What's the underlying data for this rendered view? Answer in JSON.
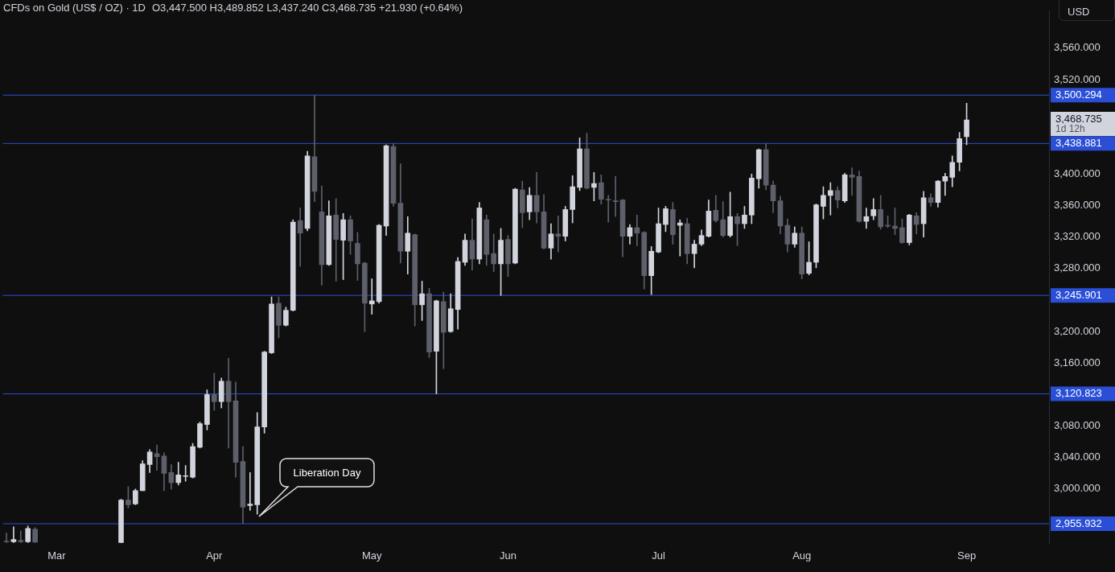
{
  "chart_data": {
    "type": "candlestick",
    "title": "CFDs on Gold (US$ / OZ) · 1D",
    "subtitle": "O3,447.500 H3,489.852 L3,437.240 C3,468.735 +21.930 (+0.64%)",
    "ylabel": "USD",
    "categories": [
      null,
      null,
      null,
      null,
      null,
      null,
      null,
      "Mar",
      null,
      null,
      null,
      null,
      null,
      null,
      null,
      null,
      null,
      null,
      null,
      null,
      null,
      null,
      null,
      null,
      null,
      null,
      null,
      null,
      null,
      "Apr",
      null,
      null,
      null,
      null,
      null,
      null,
      null,
      null,
      null,
      null,
      null,
      null,
      null,
      null,
      null,
      null,
      null,
      null,
      null,
      null,
      null,
      "May",
      null,
      null,
      null,
      null,
      null,
      null,
      null,
      null,
      null,
      null,
      null,
      null,
      null,
      null,
      null,
      null,
      null,
      null,
      "Jun",
      null,
      null,
      null,
      null,
      null,
      null,
      null,
      null,
      null,
      null,
      null,
      null,
      null,
      null,
      null,
      null,
      null,
      null,
      null,
      null,
      "Jul",
      null,
      null,
      null,
      null,
      null,
      null,
      null,
      null,
      null,
      null,
      null,
      null,
      null,
      null,
      null,
      null,
      null,
      null,
      null,
      "Aug",
      null,
      null,
      null,
      null,
      null,
      null,
      null,
      null,
      null,
      null,
      null,
      null,
      null,
      null,
      null,
      null,
      null,
      null,
      null,
      null,
      null,
      null,
      "Sep",
      null,
      null,
      null,
      null,
      null,
      null,
      null,
      null,
      null,
      null,
      null
    ],
    "ohlc": [
      [
        2934,
        2944,
        2932,
        2933
      ],
      [
        2933,
        2952,
        2932,
        2936
      ],
      [
        2935,
        2947,
        2932,
        2933
      ],
      [
        2933,
        2953,
        2932,
        2950
      ],
      [
        2949,
        2951,
        2932,
        2932.5
      ],
      null,
      null,
      null,
      null,
      null,
      null,
      null,
      null,
      null,
      null,
      null,
      [
        2932,
        2987,
        2932,
        2986
      ],
      [
        2986,
        3003,
        2976,
        2980
      ],
      [
        2981,
        3000,
        2980,
        2998
      ],
      [
        2998,
        3036,
        2998,
        3032
      ],
      [
        3031,
        3050,
        3021,
        3047
      ],
      [
        3045,
        3056,
        3024,
        3041
      ],
      [
        3042,
        3046,
        2998,
        3020
      ],
      [
        3021,
        3031,
        3000,
        3008
      ],
      [
        3008,
        3034,
        3005,
        3018
      ],
      [
        3016,
        3030,
        3010,
        3017
      ],
      [
        3015,
        3058,
        3014,
        3054
      ],
      [
        3053,
        3085,
        3052,
        3083
      ],
      [
        3082,
        3126,
        3075,
        3120
      ],
      [
        3120,
        3147,
        3100,
        3111
      ],
      [
        3111,
        3141,
        3103,
        3137
      ],
      [
        3137,
        3166,
        3052,
        3111
      ],
      [
        3112,
        3136,
        3015,
        3034
      ],
      [
        3035,
        3054,
        2955.932,
        2977
      ],
      [
        2979,
        3021,
        2973,
        2981
      ],
      [
        2980,
        3097,
        2968,
        3079
      ],
      [
        3079,
        3175,
        3071,
        3174
      ],
      [
        3173,
        3244,
        3172,
        3235
      ],
      [
        3236,
        3244,
        3192,
        3208
      ],
      [
        3208,
        3231,
        3207,
        3227
      ],
      [
        3227,
        3342,
        3226,
        3339
      ],
      [
        3341,
        3357,
        3283,
        3325
      ],
      [
        3331,
        3429,
        3328,
        3423
      ],
      [
        3422,
        3500.294,
        3365,
        3378
      ],
      [
        3352,
        3385,
        3259,
        3285
      ],
      [
        3285,
        3366,
        3284,
        3347
      ],
      [
        3348,
        3369,
        3264,
        3317
      ],
      [
        3316,
        3350,
        3266,
        3342
      ],
      [
        3342,
        3347,
        3298,
        3315
      ],
      [
        3312,
        3326,
        3265,
        3286
      ],
      [
        3287,
        3288,
        3200,
        3236
      ],
      [
        3235,
        3267,
        3222,
        3239
      ],
      [
        3238,
        3336,
        3236,
        3335
      ],
      [
        3334,
        3437,
        3322,
        3436
      ],
      [
        3435,
        3438.881,
        3359,
        3363
      ],
      [
        3363,
        3413,
        3287,
        3302
      ],
      [
        3302,
        3346,
        3273,
        3325
      ],
      [
        3323,
        3324,
        3207,
        3234
      ],
      [
        3234,
        3264,
        3214,
        3248
      ],
      [
        3248,
        3255,
        3167,
        3174
      ],
      [
        3175,
        3240,
        3120.823,
        3239
      ],
      [
        3238,
        3250,
        3153,
        3199
      ],
      [
        3200,
        3248,
        3199,
        3229
      ],
      [
        3228,
        3294,
        3203,
        3289
      ],
      [
        3288,
        3324,
        3284,
        3316
      ],
      [
        3316,
        3343,
        3278,
        3292
      ],
      [
        3292,
        3364,
        3286,
        3357
      ],
      [
        3342,
        3348,
        3284,
        3298
      ],
      [
        3299,
        3324,
        3276,
        3286
      ],
      [
        3286,
        3331,
        3245.901,
        3316
      ],
      [
        3317,
        3322,
        3270,
        3286
      ],
      [
        3287,
        3382,
        3286,
        3381
      ],
      [
        3380,
        3391,
        3332,
        3351
      ],
      [
        3352,
        3383,
        3342,
        3373
      ],
      [
        3373,
        3402,
        3338,
        3352
      ],
      [
        3352,
        3374,
        3305,
        3306
      ],
      [
        3306,
        3337,
        3292,
        3324
      ],
      [
        3324,
        3347,
        3301,
        3321
      ],
      [
        3321,
        3359,
        3315,
        3355
      ],
      [
        3355,
        3398,
        3338,
        3384
      ],
      [
        3383,
        3446,
        3379,
        3432
      ],
      [
        3432,
        3452,
        3381,
        3382
      ],
      [
        3383,
        3402,
        3366,
        3388
      ],
      [
        3389,
        3399,
        3362,
        3368
      ],
      [
        3368,
        3373,
        3339,
        3367
      ],
      [
        3366,
        3397,
        3346,
        3365
      ],
      [
        3367,
        3368,
        3295,
        3321
      ],
      [
        3321,
        3336,
        3311,
        3332
      ],
      [
        3332,
        3348,
        3309,
        3325
      ],
      [
        3326,
        3327,
        3254,
        3271
      ],
      [
        3271,
        3308,
        3247,
        3302
      ],
      [
        3301,
        3357,
        3300,
        3337
      ],
      [
        3336,
        3359,
        3327,
        3356
      ],
      [
        3355,
        3364,
        3311,
        3323
      ],
      [
        3335,
        3342,
        3296,
        3338
      ],
      [
        3337,
        3344,
        3286,
        3299
      ],
      [
        3299,
        3316,
        3281,
        3311
      ],
      [
        3311,
        3329,
        3309,
        3322
      ],
      [
        3321,
        3367,
        3320,
        3353
      ],
      [
        3354,
        3373,
        3339,
        3341
      ],
      [
        3342,
        3365,
        3320,
        3322
      ],
      [
        3322,
        3377,
        3320,
        3346
      ],
      [
        3346,
        3350,
        3309,
        3337
      ],
      [
        3337,
        3359,
        3331,
        3348
      ],
      [
        3348,
        3400,
        3337,
        3395
      ],
      [
        3394,
        3432,
        3382,
        3431
      ],
      [
        3431,
        3438.881,
        3380,
        3386
      ],
      [
        3386,
        3391,
        3351,
        3366
      ],
      [
        3366,
        3372,
        3324,
        3334
      ],
      [
        3335,
        3343,
        3301,
        3311
      ],
      [
        3311,
        3333,
        3307,
        3325
      ],
      [
        3325,
        3333,
        3267,
        3273
      ],
      [
        3274,
        3314,
        3272,
        3288
      ],
      [
        3288,
        3362,
        3281,
        3361
      ],
      [
        3359,
        3384,
        3343,
        3373
      ],
      [
        3373,
        3389,
        3348,
        3379
      ],
      [
        3379,
        3384,
        3357,
        3367
      ],
      [
        3366,
        3401,
        3364,
        3399
      ],
      [
        3399,
        3408,
        3373,
        3396
      ],
      [
        3397,
        3404,
        3339,
        3340
      ],
      [
        3340,
        3357,
        3331,
        3346
      ],
      [
        3347,
        3369,
        3342,
        3355
      ],
      [
        3355,
        3373,
        3330,
        3333
      ],
      [
        3335,
        3347,
        3332,
        3334
      ],
      [
        3334,
        3357,
        3323,
        3331
      ],
      [
        3332,
        3343,
        3312,
        3313
      ],
      [
        3313,
        3349,
        3310,
        3348
      ],
      [
        3347,
        3351,
        3324,
        3336
      ],
      [
        3337,
        3378,
        3320,
        3370
      ],
      [
        3370,
        3375,
        3359,
        3364
      ],
      [
        3364,
        3392,
        3358,
        3391
      ],
      [
        3391,
        3401,
        3373,
        3397
      ],
      [
        3396,
        3423,
        3384,
        3415
      ],
      [
        3415,
        3453,
        3404,
        3445
      ],
      [
        3447.5,
        3489.852,
        3437.24,
        3468.735
      ],
      null,
      null,
      null,
      null,
      null,
      null,
      null,
      null,
      null,
      null,
      null
    ],
    "colors": [
      "#5d606b",
      "#d1d4dc",
      "#5d606b",
      "#d1d4dc",
      "#5d606b",
      null,
      null,
      null,
      null,
      null,
      null,
      null,
      null,
      null,
      null,
      null,
      "#d1d4dc",
      "#5d606b",
      "#d1d4dc",
      "#d1d4dc",
      "#d1d4dc",
      "#5d606b",
      "#5d606b",
      "#5d606b",
      "#d1d4dc",
      "#d1d4dc",
      "#d1d4dc",
      "#d1d4dc",
      "#d1d4dc",
      "#5d606b",
      "#d1d4dc",
      "#5d606b",
      "#5d606b",
      "#5d606b",
      "#d1d4dc",
      "#d1d4dc",
      "#d1d4dc",
      "#d1d4dc",
      "#5d606b",
      "#d1d4dc",
      "#d1d4dc",
      "#5d606b",
      "#d1d4dc",
      "#5d606b",
      "#5d606b",
      "#d1d4dc",
      "#5d606b",
      "#d1d4dc",
      "#5d606b",
      "#5d606b",
      "#5d606b",
      "#d1d4dc",
      "#d1d4dc",
      "#d1d4dc",
      "#5d606b",
      "#5d606b",
      "#d1d4dc",
      "#5d606b",
      "#d1d4dc",
      "#5d606b",
      "#d1d4dc",
      "#5d606b",
      "#d1d4dc",
      "#d1d4dc",
      "#d1d4dc",
      "#5d606b",
      "#d1d4dc",
      "#5d606b",
      "#5d606b",
      "#d1d4dc",
      "#5d606b",
      "#d1d4dc",
      "#5d606b",
      "#d1d4dc",
      "#5d606b",
      "#5d606b",
      "#d1d4dc",
      "#5d606b",
      "#d1d4dc",
      "#d1d4dc",
      "#d1d4dc",
      "#5d606b",
      "#d1d4dc",
      "#5d606b",
      "#5d606b",
      "#5d606b",
      "#5d606b",
      "#d1d4dc",
      "#5d606b",
      "#5d606b",
      "#d1d4dc",
      "#d1d4dc",
      "#d1d4dc",
      "#5d606b",
      "#d1d4dc",
      "#5d606b",
      "#d1d4dc",
      "#d1d4dc",
      "#d1d4dc",
      "#5d606b",
      "#5d606b",
      "#d1d4dc",
      "#5d606b",
      "#d1d4dc",
      "#d1d4dc",
      "#d1d4dc",
      "#5d606b",
      "#5d606b",
      "#5d606b",
      "#5d606b",
      "#d1d4dc",
      "#5d606b",
      "#d1d4dc",
      "#d1d4dc",
      "#d1d4dc",
      "#d1d4dc",
      "#5d606b",
      "#d1d4dc",
      "#5d606b",
      "#5d606b",
      "#d1d4dc",
      "#d1d4dc",
      "#5d606b",
      "#5d606b",
      "#5d606b",
      "#5d606b",
      "#d1d4dc",
      "#5d606b",
      "#d1d4dc",
      "#5d606b",
      "#d1d4dc",
      "#d1d4dc",
      "#d1d4dc",
      "#d1d4dc",
      "#d1d4dc",
      null,
      null,
      null,
      null,
      null,
      null,
      null,
      null,
      null,
      null,
      null
    ],
    "ylim": [
      2931,
      3607
    ],
    "yticks": [
      {
        "value": 3000,
        "label": "3,000.000"
      },
      {
        "value": 3040,
        "label": "3,040.000"
      },
      {
        "value": 3080,
        "label": "3,080.000"
      },
      {
        "value": 3160,
        "label": "3,160.000"
      },
      {
        "value": 3200,
        "label": "3,200.000"
      },
      {
        "value": 3280,
        "label": "3,280.000"
      },
      {
        "value": 3320,
        "label": "3,320.000"
      },
      {
        "value": 3360,
        "label": "3,360.000"
      },
      {
        "value": 3400,
        "label": "3,400.000"
      },
      {
        "value": 3520,
        "label": "3,520.000"
      },
      {
        "value": 3560,
        "label": "3,560.000"
      }
    ],
    "ref_lines": [
      {
        "axis": "y",
        "value": 3500.294,
        "label": "3,500.294",
        "color": "#2a4fd6"
      },
      {
        "axis": "y",
        "value": 3438.881,
        "label": "3,438.881",
        "color": "#2a4fd6"
      },
      {
        "axis": "y",
        "value": 3245.901,
        "label": "3,245.901",
        "color": "#2a4fd6"
      },
      {
        "axis": "y",
        "value": 3120.823,
        "label": "3,120.823",
        "color": "#2a4fd6"
      },
      {
        "axis": "y",
        "value": 2955.932,
        "label": "2,955.932",
        "color": "#2a4fd6"
      }
    ],
    "annotations": [
      "Liberation Day",
      "3,468.735",
      "1d 12h"
    ]
  }
}
